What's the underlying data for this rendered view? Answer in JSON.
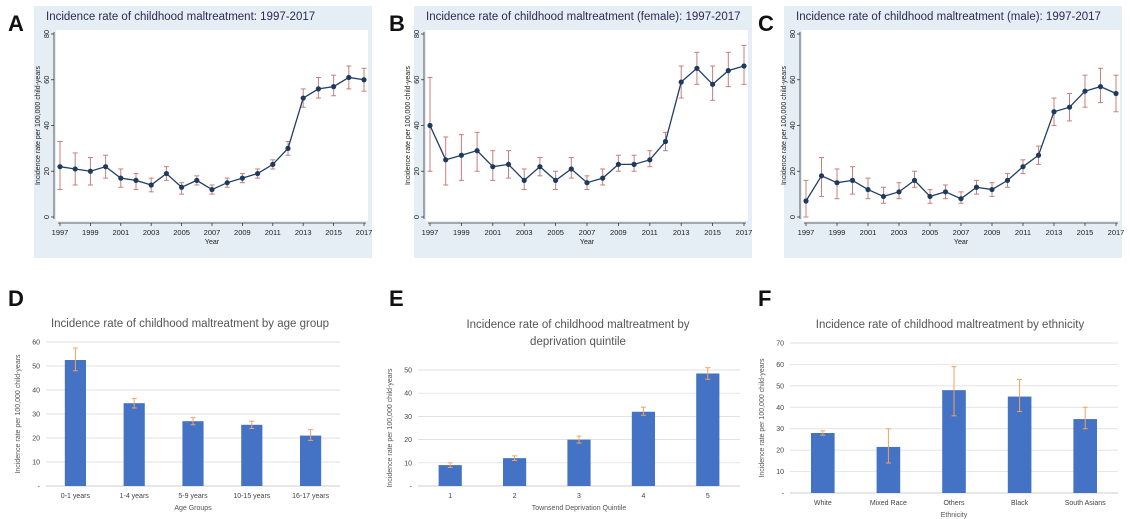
{
  "panel_letters": [
    "A",
    "B",
    "C",
    "D",
    "E",
    "F"
  ],
  "colors": {
    "line_panel_bg": "#e4eef4",
    "line_series": "#1f3f66",
    "line_marker": "#1e3a5f",
    "line_error": "#c87f7a",
    "bar_fill": "#4472c4",
    "bar_error": "#f4a261",
    "bar_grid": "#d9d9d9"
  },
  "chart_data": [
    {
      "id": "A",
      "type": "line",
      "title": "Incidence rate of childhood maltreatment: 1997-2017",
      "xlabel": "Year",
      "ylabel": "Incidence rate per 100,000 child-years",
      "xlim": [
        1997,
        2017
      ],
      "ylim": [
        0,
        80
      ],
      "xticks": [
        "1997",
        "1999",
        "2001",
        "2003",
        "2005",
        "2007",
        "2009",
        "2011",
        "2013",
        "2015",
        "2017"
      ],
      "yticks": [
        "0",
        "20",
        "40",
        "60",
        "80"
      ],
      "x": [
        1997,
        1998,
        1999,
        2000,
        2001,
        2002,
        2003,
        2004,
        2005,
        2006,
        2007,
        2008,
        2009,
        2010,
        2011,
        2012,
        2013,
        2014,
        2015,
        2016,
        2017
      ],
      "values": [
        22,
        21,
        20,
        22,
        17,
        16,
        14,
        19,
        13,
        16,
        12,
        15,
        17,
        19,
        23,
        30,
        52,
        56,
        57,
        61,
        60
      ],
      "err_low": [
        12,
        14,
        14,
        17,
        13,
        12,
        11,
        16,
        10,
        14,
        10,
        13,
        15,
        17,
        21,
        27,
        48,
        52,
        53,
        56,
        55
      ],
      "err_high": [
        33,
        28,
        26,
        27,
        21,
        19,
        17,
        22,
        15,
        18,
        14,
        17,
        19,
        21,
        25,
        33,
        56,
        61,
        62,
        66,
        65
      ],
      "grid": false
    },
    {
      "id": "B",
      "type": "line",
      "title": "Incidence rate of childhood maltreatment (female): 1997-2017",
      "xlabel": "Year",
      "ylabel": "Incidence rate per 100,000 child-years",
      "xlim": [
        1997,
        2017
      ],
      "ylim": [
        0,
        80
      ],
      "xticks": [
        "1997",
        "1999",
        "2001",
        "2003",
        "2005",
        "2007",
        "2009",
        "2011",
        "2013",
        "2015",
        "2017"
      ],
      "yticks": [
        "0",
        "20",
        "40",
        "60",
        "80"
      ],
      "x": [
        1997,
        1998,
        1999,
        2000,
        2001,
        2002,
        2003,
        2004,
        2005,
        2006,
        2007,
        2008,
        2009,
        2010,
        2011,
        2012,
        2013,
        2014,
        2015,
        2016,
        2017
      ],
      "values": [
        40,
        25,
        27,
        29,
        22,
        23,
        16,
        22,
        16,
        21,
        15,
        17,
        23,
        23,
        25,
        33,
        59,
        65,
        58,
        64,
        66
      ],
      "err_low": [
        20,
        14,
        16,
        20,
        16,
        17,
        12,
        18,
        12,
        17,
        12,
        14,
        20,
        20,
        22,
        29,
        52,
        58,
        51,
        57,
        58
      ],
      "err_high": [
        61,
        35,
        36,
        37,
        29,
        29,
        21,
        26,
        20,
        26,
        18,
        21,
        27,
        27,
        29,
        37,
        66,
        72,
        66,
        72,
        75
      ],
      "grid": false
    },
    {
      "id": "C",
      "type": "line",
      "title": "Incidence rate of childhood maltreatment (male): 1997-2017",
      "xlabel": "Year",
      "ylabel": "Incidence rate per 100,000 child-years",
      "xlim": [
        1997,
        2017
      ],
      "ylim": [
        0,
        80
      ],
      "xticks": [
        "1997",
        "1999",
        "2001",
        "2003",
        "2005",
        "2007",
        "2009",
        "2011",
        "2013",
        "2015",
        "2017"
      ],
      "yticks": [
        "0",
        "20",
        "40",
        "60",
        "80"
      ],
      "x": [
        1997,
        1998,
        1999,
        2000,
        2001,
        2002,
        2003,
        2004,
        2005,
        2006,
        2007,
        2008,
        2009,
        2010,
        2011,
        2012,
        2013,
        2014,
        2015,
        2016,
        2017
      ],
      "values": [
        7,
        18,
        15,
        16,
        12,
        9,
        11,
        16,
        9,
        11,
        8,
        13,
        12,
        16,
        22,
        27,
        46,
        48,
        55,
        57,
        54
      ],
      "err_low": [
        0,
        9,
        8,
        10,
        8,
        6,
        8,
        13,
        6,
        8,
        6,
        10,
        9,
        13,
        19,
        23,
        40,
        42,
        48,
        50,
        46
      ],
      "err_high": [
        16,
        26,
        21,
        22,
        17,
        13,
        15,
        20,
        12,
        14,
        11,
        16,
        15,
        19,
        25,
        31,
        52,
        54,
        62,
        65,
        62
      ],
      "grid": false
    },
    {
      "id": "D",
      "type": "bar",
      "title": "Incidence rate of childhood maltreatment by age group",
      "xlabel": "Age Groups",
      "ylabel": "Incidence rate per 100,000 child-years",
      "categories": [
        "0-1 years",
        "1-4 years",
        "5-9 years",
        "10-15 years",
        "16-17 years"
      ],
      "values": [
        52.5,
        34.5,
        27,
        25.5,
        21
      ],
      "err_low": [
        48,
        32.5,
        25.5,
        24,
        19
      ],
      "err_high": [
        57.5,
        36.5,
        28.5,
        27,
        23.5
      ],
      "ylim": [
        0,
        60
      ],
      "yticks": [
        "-",
        "10",
        "20",
        "30",
        "40",
        "50",
        "60"
      ],
      "grid": true
    },
    {
      "id": "E",
      "type": "bar",
      "title": "Incidence rate of childhood maltreatment by deprivation quintile",
      "title_lines": [
        "Incidence rate of childhood maltreatment by",
        "deprivation quintile"
      ],
      "xlabel": "Townsend Deprivation Quintile",
      "ylabel": "Incidence rate per 100,000 child-years",
      "categories": [
        "1",
        "2",
        "3",
        "4",
        "5"
      ],
      "values": [
        9,
        12,
        20,
        32,
        48.5
      ],
      "err_low": [
        8,
        11,
        18.5,
        30.5,
        46
      ],
      "err_high": [
        10,
        13,
        21.5,
        34,
        51
      ],
      "ylim": [
        0,
        50
      ],
      "yticks": [
        "-",
        "10",
        "20",
        "30",
        "40",
        "50"
      ],
      "grid": true
    },
    {
      "id": "F",
      "type": "bar",
      "title": "Incidence rate of childhood maltreatment by ethnicity",
      "xlabel": "Ethnicity",
      "ylabel": "Incidence rate per 100,000 child-years",
      "categories": [
        "White",
        "Mixed Race",
        "Others",
        "Black",
        "South Asians"
      ],
      "values": [
        28,
        21.5,
        48,
        45,
        34.5
      ],
      "err_low": [
        27,
        14,
        36,
        38,
        30
      ],
      "err_high": [
        29,
        30,
        59,
        53,
        40
      ],
      "ylim": [
        0,
        70
      ],
      "yticks": [
        "-",
        "10",
        "20",
        "30",
        "40",
        "50",
        "60",
        "70"
      ],
      "grid": true
    }
  ]
}
